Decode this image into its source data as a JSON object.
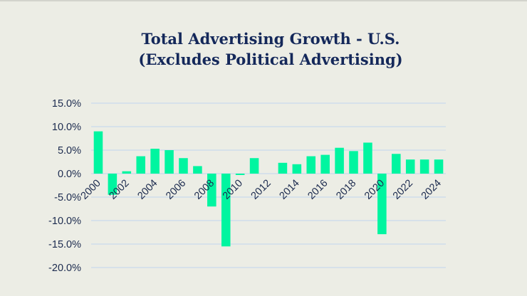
{
  "chart_data": {
    "type": "bar",
    "title": "Total Advertising Growth - U.S.",
    "subtitle": "(Excludes Political Advertising)",
    "xlabel": "",
    "ylabel": "",
    "ylim": [
      -0.2,
      0.15
    ],
    "yticks": [
      0.15,
      0.1,
      0.05,
      0.0,
      -0.05,
      -0.1,
      -0.15,
      -0.2
    ],
    "ytick_labels": [
      "15.0%",
      "10.0%",
      "5.0%",
      "0.0%",
      "-5.0%",
      "-10.0%",
      "-15.0%",
      "-20.0%"
    ],
    "grid": true,
    "legend": "none",
    "bar_color": "#00f5a0",
    "gridline_color": "#c9daee",
    "categories": [
      "2000",
      "2001",
      "2002",
      "2003",
      "2004",
      "2005",
      "2006",
      "2007",
      "2008",
      "2009",
      "2010",
      "2011",
      "2012",
      "2013",
      "2014",
      "2015",
      "2016",
      "2017",
      "2018",
      "2019",
      "2020",
      "2021",
      "2022",
      "2023",
      "2024"
    ],
    "xtick_labels": [
      "2000",
      "2002",
      "2004",
      "2006",
      "2008",
      "2010",
      "2012",
      "2014",
      "2016",
      "2018",
      "2020",
      "2022",
      "2024"
    ],
    "values": [
      0.09,
      -0.045,
      0.005,
      0.037,
      0.053,
      0.05,
      0.033,
      0.016,
      -0.07,
      -0.155,
      -0.003,
      0.033,
      0.0,
      0.023,
      0.02,
      0.037,
      0.04,
      0.055,
      0.048,
      0.066,
      -0.129,
      0.042,
      0.03,
      0.03,
      0.03
    ]
  }
}
